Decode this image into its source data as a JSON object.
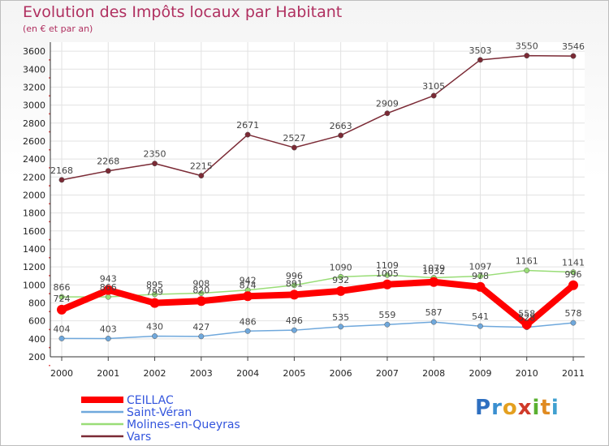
{
  "chart_data": {
    "type": "line",
    "title": "Evolution des Impôts locaux par Habitant",
    "subtitle": "(en € et par an)",
    "xlabel": "",
    "ylabel": "",
    "ylim": [
      200,
      3700
    ],
    "yticks": [
      200,
      400,
      600,
      800,
      1000,
      1200,
      1400,
      1600,
      1800,
      2000,
      2200,
      2400,
      2600,
      2800,
      3000,
      3200,
      3400,
      3600
    ],
    "categories": [
      "2000",
      "2001",
      "2002",
      "2003",
      "2004",
      "2005",
      "2006",
      "2007",
      "2008",
      "2009",
      "2010",
      "2011"
    ],
    "legend_position": "bottom-left",
    "series": [
      {
        "name": "Vars",
        "color": "#7b2a35",
        "values": [
          2168,
          2268,
          2350,
          2215,
          2671,
          2527,
          2663,
          2909,
          3105,
          3503,
          3550,
          3546
        ],
        "labels": [
          "2168",
          "2268",
          "2350",
          "2215",
          "2671",
          "2527",
          "2663",
          "2909",
          "3105",
          "3503",
          "3550",
          "3546"
        ]
      },
      {
        "name": "Molines-en-Queyras",
        "color": "#99dd77",
        "values": [
          866,
          866,
          895,
          908,
          942,
          996,
          1090,
          1109,
          1079,
          1097,
          1161,
          1141
        ],
        "labels": [
          "866",
          "866",
          "895",
          "908",
          "942",
          "996",
          "1090",
          "1109",
          "1079",
          "1097",
          "1161",
          "1141"
        ]
      },
      {
        "name": "Saint-Véran",
        "color": "#6fa8dc",
        "values": [
          404,
          403,
          430,
          427,
          486,
          496,
          535,
          559,
          587,
          541,
          528,
          578
        ],
        "labels": [
          "404",
          "403",
          "430",
          "427",
          "486",
          "496",
          "535",
          "559",
          "587",
          "541",
          "528",
          "578"
        ]
      },
      {
        "name": "CEILLAC",
        "color": "#ff0000",
        "values": [
          724,
          943,
          799,
          820,
          874,
          891,
          932,
          1005,
          1032,
          978,
          558,
          996
        ],
        "labels": [
          "724",
          "943",
          "799",
          "820",
          "874",
          "891",
          "932",
          "1005",
          "1032",
          "978",
          "558",
          "996"
        ]
      }
    ],
    "legend": [
      {
        "name": "CEILLAC",
        "color": "#ff0000"
      },
      {
        "name": "Saint-Véran",
        "color": "#6fa8dc"
      },
      {
        "name": "Molines-en-Queyras",
        "color": "#99dd77"
      },
      {
        "name": "Vars",
        "color": "#7b2a35"
      }
    ]
  },
  "branding": {
    "logo_letters": [
      "P",
      "r",
      "o",
      "x",
      "i",
      "t",
      "i"
    ],
    "logo_colors": [
      "#2e6fc0",
      "#3a8fd0",
      "#e4a020",
      "#d03a2a",
      "#5ab030",
      "#e08a20",
      "#40a0d0"
    ]
  }
}
